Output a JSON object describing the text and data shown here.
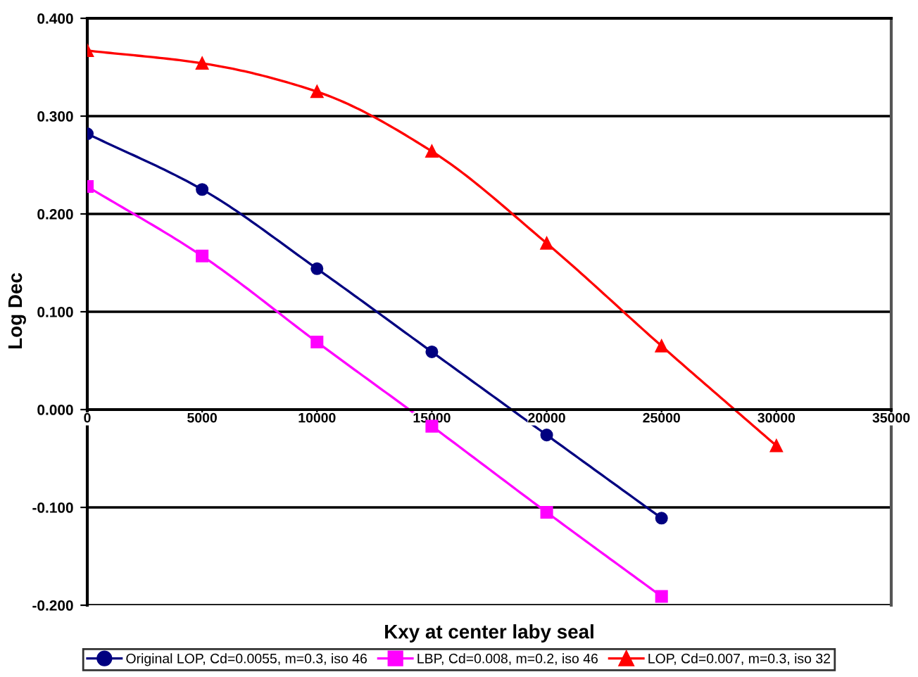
{
  "chart_data": {
    "type": "line",
    "xlabel": "Kxy at center laby seal",
    "ylabel": "Log Dec",
    "xlim": [
      0,
      35000
    ],
    "xticks": [
      0,
      5000,
      10000,
      15000,
      20000,
      25000,
      30000,
      35000
    ],
    "ylim": [
      -0.2,
      0.4
    ],
    "yticks": [
      {
        "value": -0.2,
        "label": "-0.200"
      },
      {
        "value": -0.1,
        "label": "-0.100"
      },
      {
        "value": 0,
        "label": "0.000"
      },
      {
        "value": 0.1,
        "label": "0.100"
      },
      {
        "value": 0.2,
        "label": "0.200"
      },
      {
        "value": 0.3,
        "label": "0.300"
      },
      {
        "value": 0.4,
        "label": "0.400"
      }
    ],
    "grid": "y",
    "legend": "bottom",
    "series": [
      {
        "name": "Original LOP, Cd=0.0055, m=0.3, iso 46",
        "color": "#000080",
        "marker": "circle",
        "x": [
          0,
          5000,
          10000,
          15000,
          20000,
          25000
        ],
        "values": [
          0.282,
          0.225,
          0.144,
          0.059,
          -0.026,
          -0.111
        ]
      },
      {
        "name": "LBP, Cd=0.008, m=0.2, iso 46",
        "color": "#ff00ff",
        "marker": "square",
        "x": [
          0,
          5000,
          10000,
          15000,
          20000,
          25000
        ],
        "values": [
          0.228,
          0.157,
          0.069,
          -0.017,
          -0.105,
          -0.191
        ]
      },
      {
        "name": "LOP, Cd=0.007, m=0.3, iso 32",
        "color": "#ff0000",
        "marker": "triangle",
        "x": [
          0,
          5000,
          10000,
          15000,
          20000,
          25000,
          30000
        ],
        "values": [
          0.367,
          0.354,
          0.325,
          0.264,
          0.17,
          0.065,
          -0.037
        ]
      }
    ]
  }
}
